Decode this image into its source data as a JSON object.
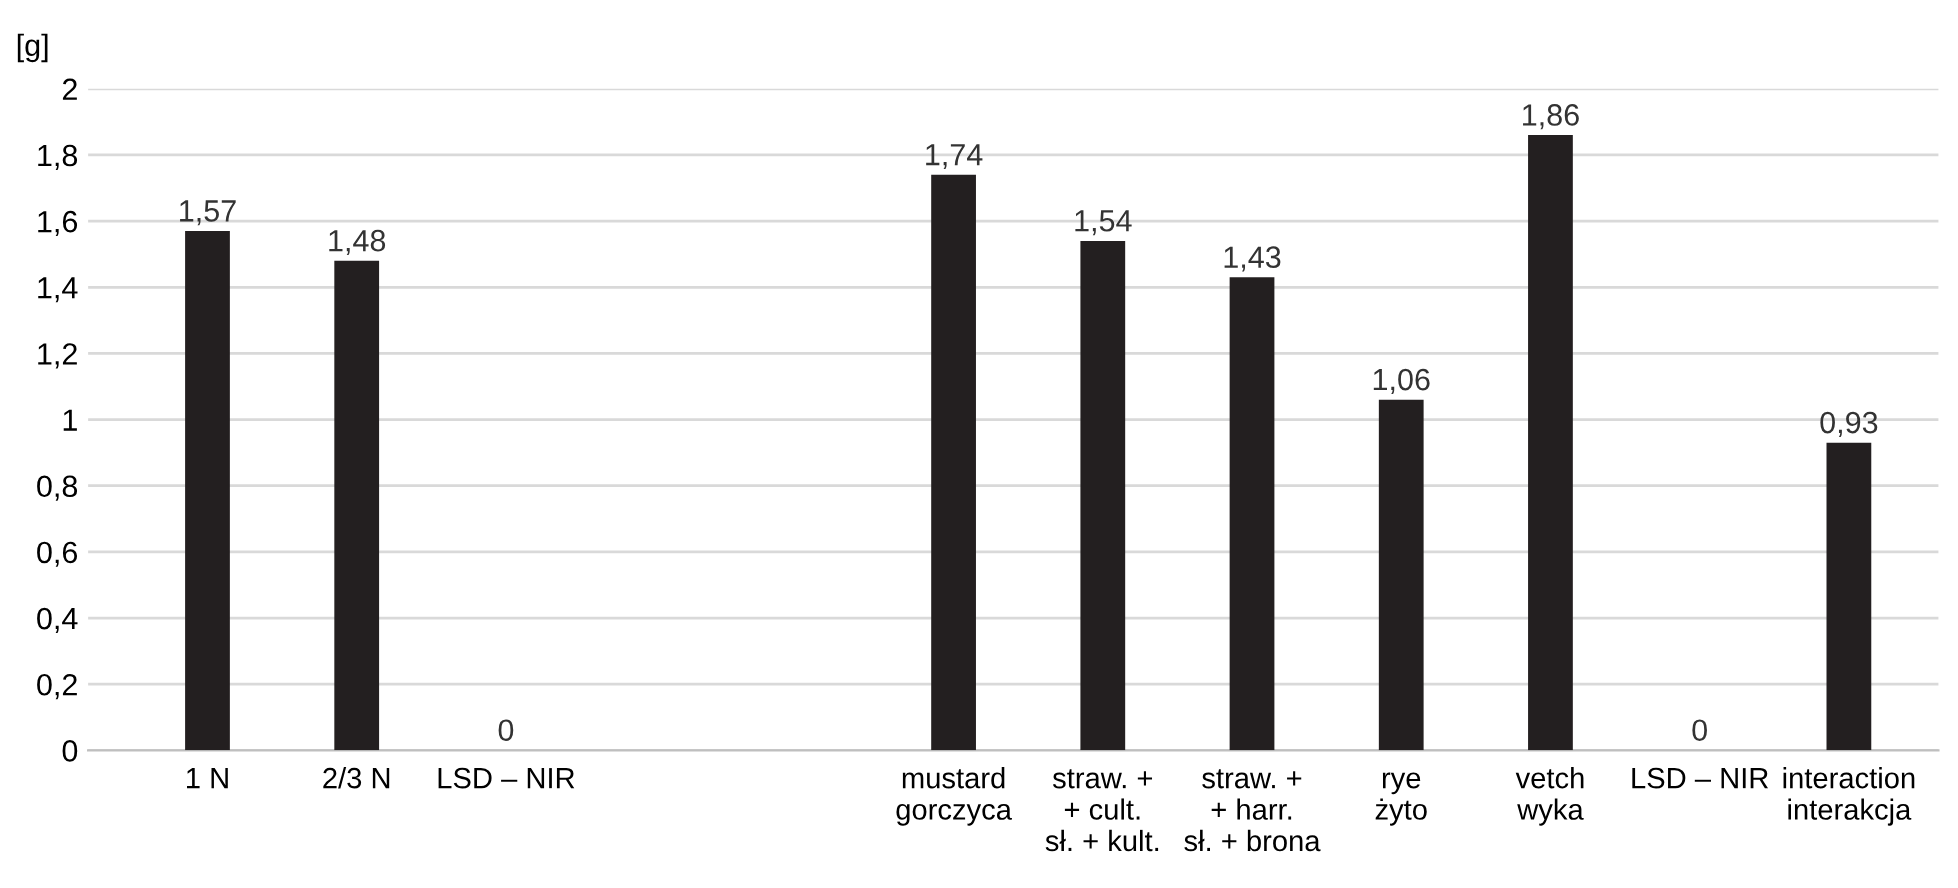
{
  "chart_data": {
    "type": "bar",
    "ylabel": "[g]",
    "categories": [
      "1 N",
      "2/3 N",
      "LSD – NIR",
      null,
      null,
      "mustard\ngorczyca",
      "straw. +\n+ cult.\nsł. + kult.",
      "straw. +\n+ harr.\nsł. + brona",
      "rye\nżyto",
      "vetch\nwyka",
      "LSD – NIR",
      "interaction\ninterakcja"
    ],
    "values": [
      1.57,
      1.48,
      0,
      null,
      null,
      1.74,
      1.54,
      1.43,
      1.06,
      1.86,
      0,
      0.93
    ],
    "value_labels": [
      "1,57",
      "1,48",
      "0",
      null,
      null,
      "1,74",
      "1,54",
      "1,43",
      "1,06",
      "1,86",
      "0",
      "0,93"
    ],
    "color": "#231f20",
    "ylim": [
      0,
      2
    ],
    "yticks": [
      0,
      {
        "value": 0.2,
        "label": "0,2"
      },
      {
        "value": 0.4,
        "label": "0,4"
      },
      {
        "value": 0.6,
        "label": "0,6"
      },
      {
        "value": 0.8,
        "label": "0,8"
      },
      1,
      {
        "value": 1.2,
        "label": "1,2"
      },
      {
        "value": 1.4,
        "label": "1,4"
      },
      {
        "value": 1.6,
        "label": "1,6"
      },
      {
        "value": 1.8,
        "label": "1,8"
      },
      2
    ],
    "grid": "y"
  }
}
